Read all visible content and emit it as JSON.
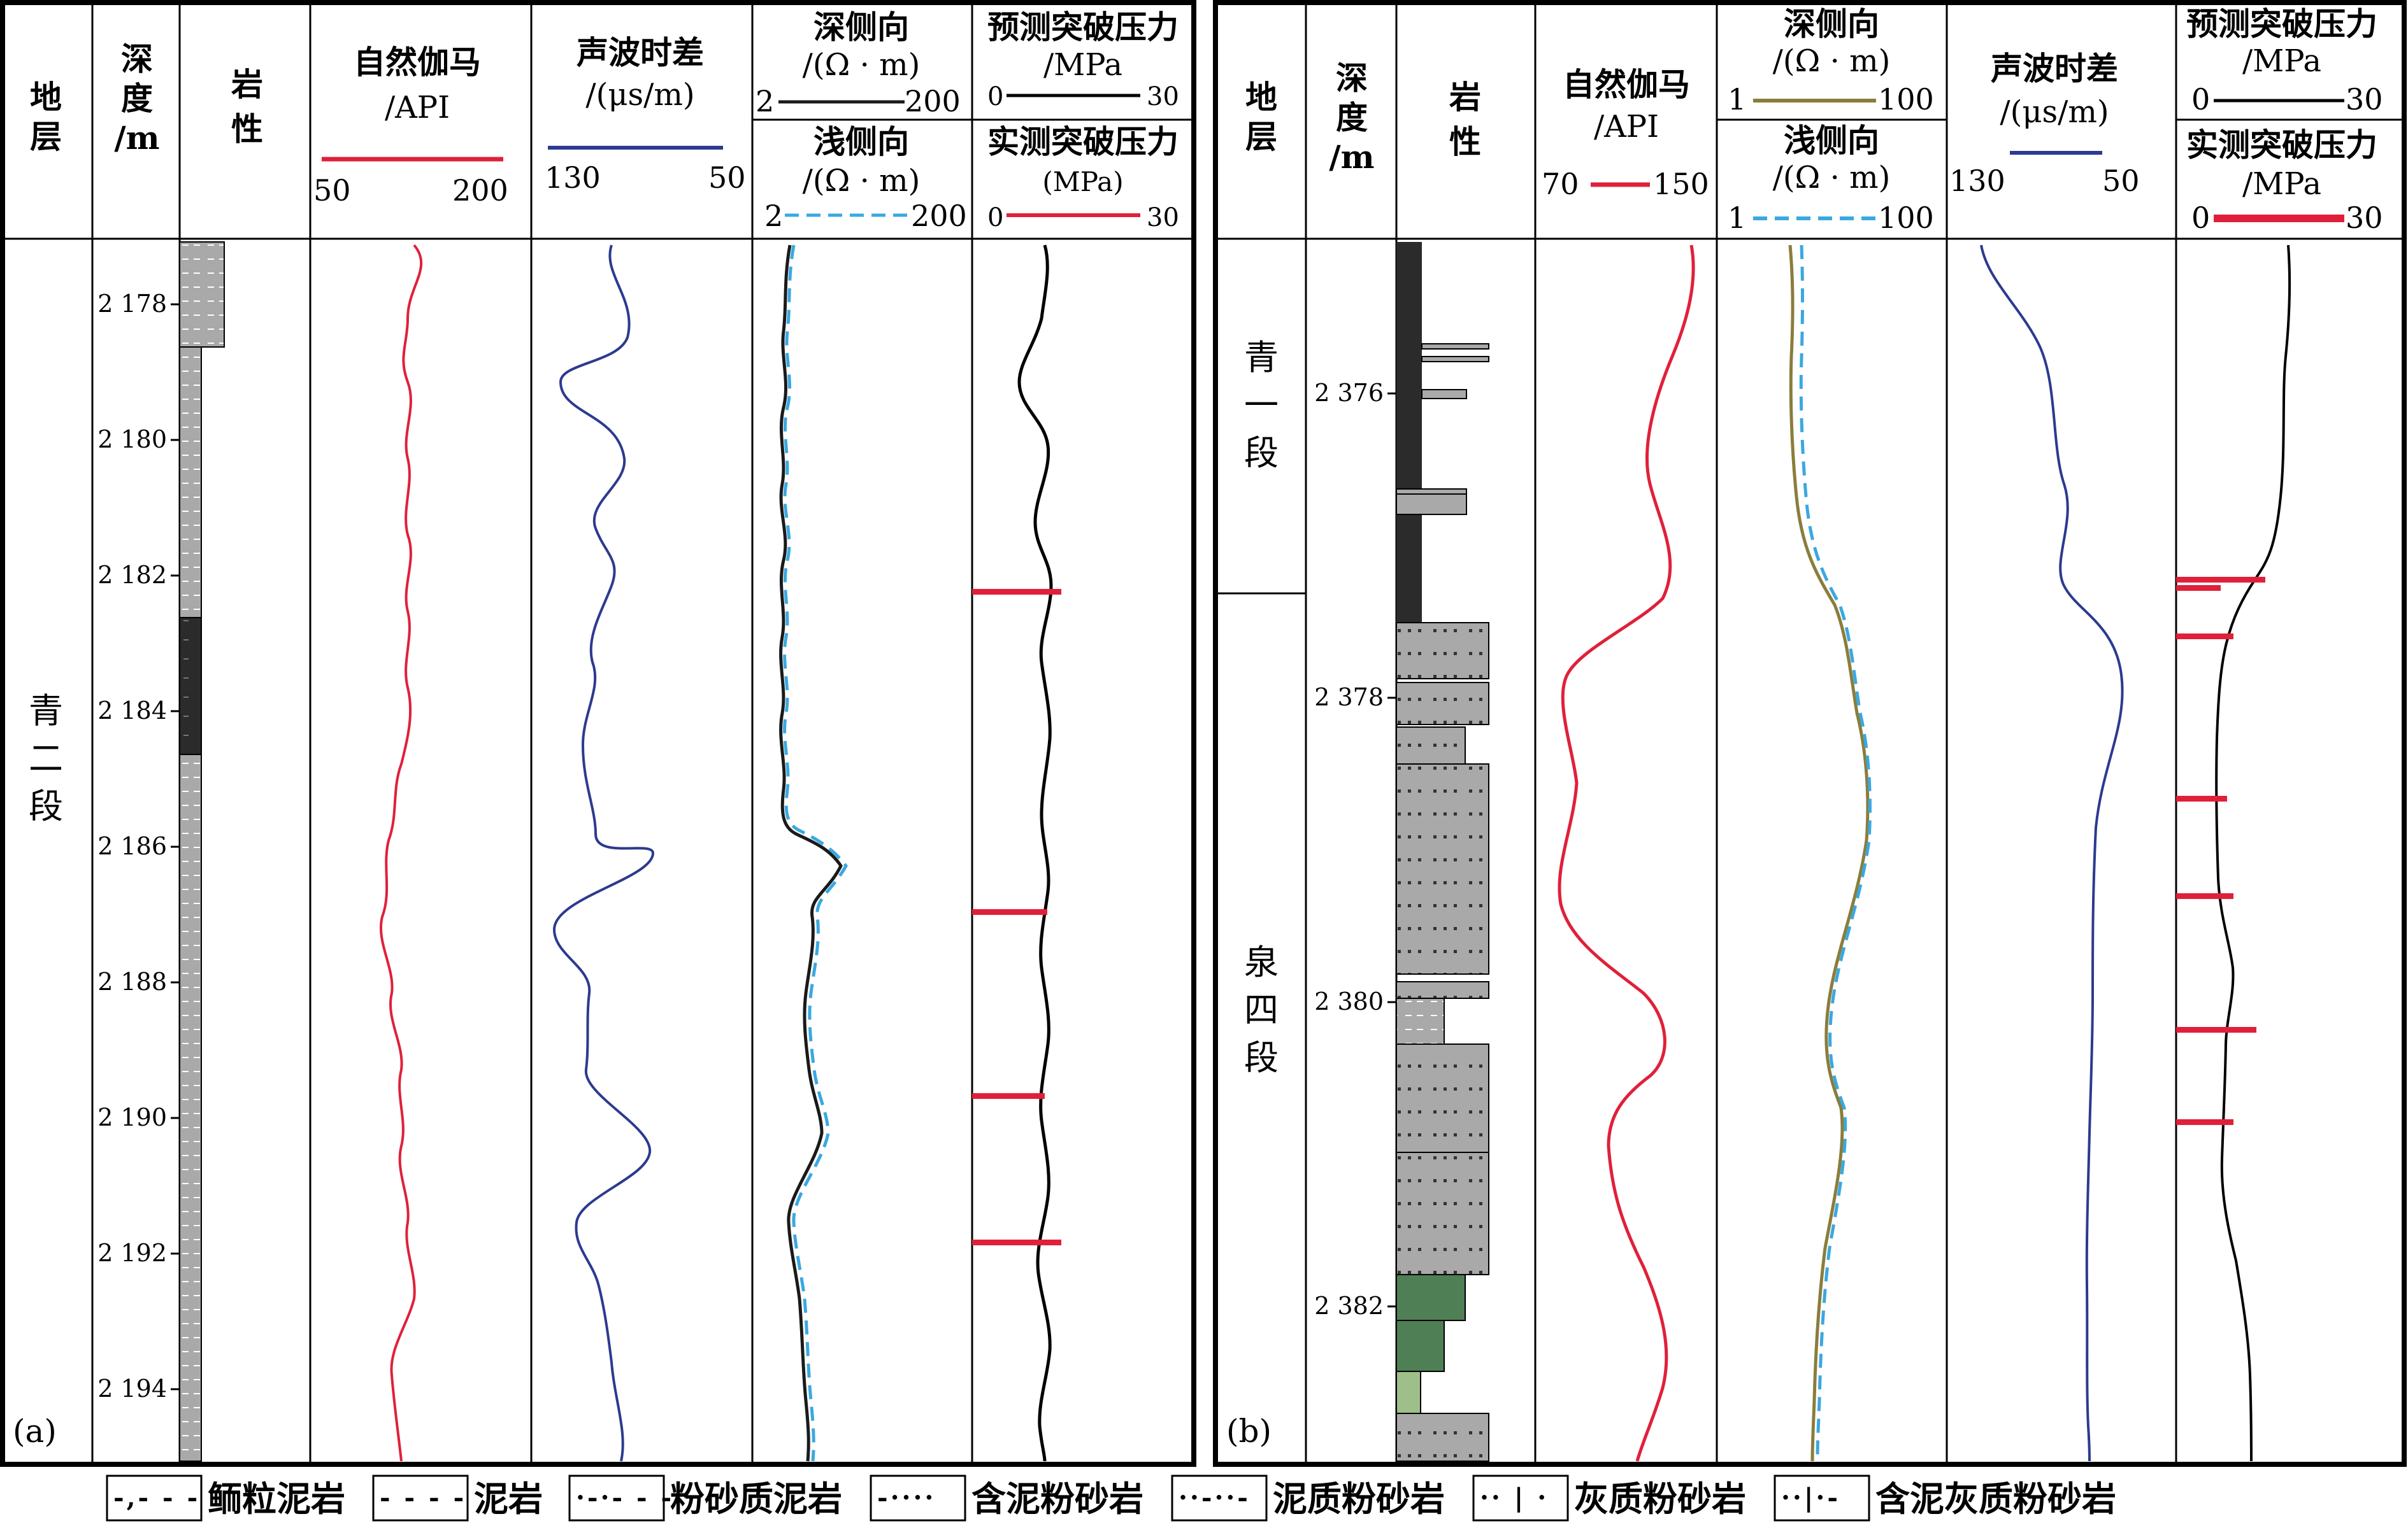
{
  "panel_a": {
    "label": "(a)",
    "headers": {
      "strata": "地\n层",
      "depth": "深\n度\n/m",
      "lith": "岩\n性",
      "gr_title": "自然伽马",
      "gr_unit": "/API",
      "gr_min": "50",
      "gr_max": "200",
      "ac_title": "声波时差",
      "ac_unit": "/(μs/m)",
      "ac_min": "130",
      "ac_max": "50",
      "rd_title": "深侧向",
      "rd_unit": "/(Ω · m)",
      "rd_min": "2",
      "rd_max": "200",
      "rs_title": "浅侧向",
      "rs_unit": "/(Ω · m)",
      "rs_min": "2",
      "rs_max": "200",
      "pred_title": "预测突破压力",
      "pred_unit": "/MPa",
      "pred_min": "0",
      "pred_max": "30",
      "meas_title": "实测突破压力",
      "meas_unit": "(MPa)",
      "meas_min": "0",
      "meas_max": "30"
    },
    "stratum": "青\n二\n段",
    "depth_ticks": [
      "2 178",
      "2 180",
      "2 182",
      "2 184",
      "2 186",
      "2 188",
      "2 190",
      "2 192",
      "2 194"
    ]
  },
  "panel_b": {
    "label": "(b)",
    "headers": {
      "strata": "地\n层",
      "depth": "深\n度\n/m",
      "lith": "岩\n性",
      "gr_title": "自然伽马",
      "gr_unit": "/API",
      "gr_min": "70",
      "gr_max": "150",
      "rd_title": "深侧向",
      "rd_unit": "/(Ω · m)",
      "rd_min": "1",
      "rd_max": "100",
      "rs_title": "浅侧向",
      "rs_unit": "/(Ω · m)",
      "rs_min": "1",
      "rs_max": "100",
      "ac_title": "声波时差",
      "ac_unit": "/(μs/m)",
      "ac_min": "130",
      "ac_max": "50",
      "pred_title": "预测突破压力",
      "pred_unit": "/MPa",
      "pred_min": "0",
      "pred_max": "30",
      "meas_title": "实测突破压力",
      "meas_unit": "/MPa",
      "meas_min": "0",
      "meas_max": "30"
    },
    "stratum_upper": "青\n一\n段",
    "stratum_lower": "泉\n四\n段",
    "depth_ticks": [
      "2 376",
      "2 378",
      "2 380",
      "2 382"
    ]
  },
  "legend": [
    {
      "name": "鲕粒泥岩",
      "pattern": "oolitic"
    },
    {
      "name": "泥岩",
      "pattern": "mud"
    },
    {
      "name": "粉砂质泥岩",
      "pattern": "silty-mud"
    },
    {
      "name": "含泥粉砂岩",
      "pattern": "muddy-silt"
    },
    {
      "name": "泥质粉砂岩",
      "pattern": "argillaceous-silt"
    },
    {
      "name": "灰质粉砂岩",
      "pattern": "calc-silt"
    },
    {
      "name": "含泥灰质粉砂岩",
      "pattern": "muddy-calc-silt"
    }
  ],
  "colors": {
    "gr": "#e0203a",
    "ac": "#2c3a8f",
    "rd_a": "#1a1a1a",
    "rd_b": "#8a7d3c",
    "rs": "#3aa8e0",
    "pred": "#000000",
    "meas": "#e0203a",
    "lith_gray": "#a9a9a9",
    "lith_dark": "#2b2b2b",
    "lith_green": "#4f7f55",
    "lith_lightgreen": "#9fbf8a"
  }
}
